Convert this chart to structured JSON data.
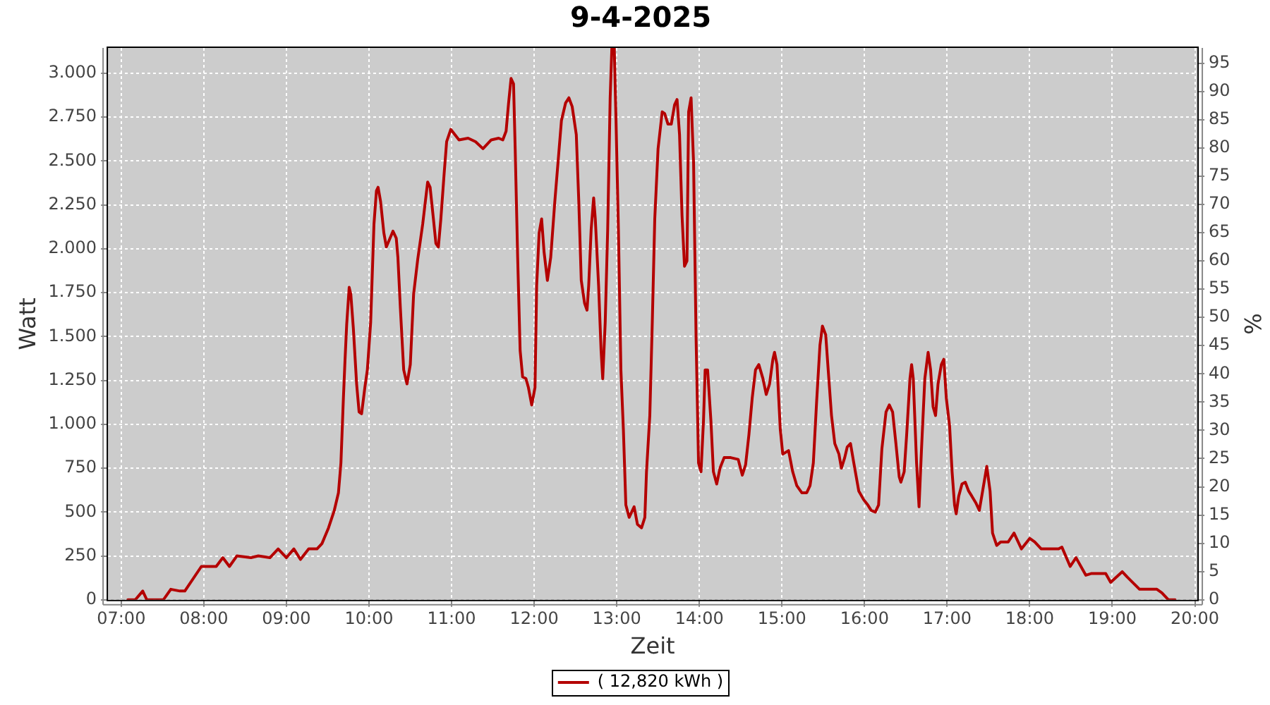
{
  "chart_data": {
    "type": "line",
    "title": "9-4-2025",
    "xlabel": "Zeit",
    "ylabel": "Watt",
    "y2label": "%",
    "x": [
      7.08,
      7.17,
      7.26,
      7.31,
      7.51,
      7.6,
      7.71,
      7.77,
      7.97,
      8.07,
      8.15,
      8.23,
      8.31,
      8.4,
      8.57,
      8.66,
      8.8,
      8.9,
      9.0,
      9.09,
      9.17,
      9.27,
      9.37,
      9.43,
      9.51,
      9.58,
      9.63,
      9.66,
      9.69,
      9.71,
      9.73,
      9.76,
      9.78,
      9.81,
      9.85,
      9.88,
      9.91,
      9.95,
      9.98,
      10.02,
      10.06,
      10.09,
      10.11,
      10.14,
      10.18,
      10.21,
      10.29,
      10.33,
      10.35,
      10.38,
      10.42,
      10.46,
      10.5,
      10.54,
      10.59,
      10.65,
      10.71,
      10.74,
      10.78,
      10.81,
      10.84,
      10.87,
      10.91,
      10.94,
      10.99,
      11.09,
      11.2,
      11.29,
      11.38,
      11.48,
      11.57,
      11.62,
      11.66,
      11.69,
      11.72,
      11.75,
      11.77,
      11.8,
      11.83,
      11.86,
      11.9,
      11.93,
      11.97,
      12.01,
      12.03,
      12.06,
      12.09,
      12.12,
      12.16,
      12.2,
      12.25,
      12.29,
      12.33,
      12.38,
      12.42,
      12.46,
      12.51,
      12.54,
      12.57,
      12.61,
      12.64,
      12.66,
      12.69,
      12.72,
      12.74,
      12.78,
      12.81,
      12.83,
      12.86,
      12.89,
      12.92,
      12.94,
      12.97,
      12.99,
      13.02,
      13.05,
      13.08,
      13.11,
      13.15,
      13.21,
      13.25,
      13.3,
      13.34,
      13.36,
      13.4,
      13.43,
      13.46,
      13.5,
      13.55,
      13.58,
      13.62,
      13.66,
      13.7,
      13.73,
      13.76,
      13.79,
      13.82,
      13.85,
      13.87,
      13.9,
      13.93,
      13.96,
      13.99,
      14.02,
      14.05,
      14.07,
      14.1,
      14.14,
      14.17,
      14.21,
      14.25,
      14.3,
      14.38,
      14.47,
      14.52,
      14.56,
      14.6,
      14.64,
      14.68,
      14.72,
      14.77,
      14.81,
      14.85,
      14.89,
      14.91,
      14.94,
      14.98,
      15.01,
      15.08,
      15.13,
      15.18,
      15.24,
      15.3,
      15.34,
      15.38,
      15.42,
      15.46,
      15.49,
      15.53,
      15.56,
      15.6,
      15.64,
      15.69,
      15.72,
      15.76,
      15.79,
      15.83,
      15.87,
      15.93,
      15.99,
      16.04,
      16.08,
      16.13,
      16.17,
      16.21,
      16.26,
      16.3,
      16.34,
      16.38,
      16.42,
      16.44,
      16.48,
      16.51,
      16.55,
      16.57,
      16.59,
      16.63,
      16.66,
      16.69,
      16.73,
      16.77,
      16.8,
      16.83,
      16.86,
      16.89,
      16.93,
      16.96,
      16.99,
      17.03,
      17.06,
      17.09,
      17.11,
      17.14,
      17.18,
      17.22,
      17.26,
      17.3,
      17.35,
      17.39,
      17.43,
      17.48,
      17.52,
      17.55,
      17.6,
      17.65,
      17.74,
      17.81,
      17.9,
      18.0,
      18.06,
      18.14,
      18.35,
      18.39,
      18.49,
      18.56,
      18.68,
      18.75,
      18.92,
      18.98,
      19.12,
      19.18,
      19.33,
      19.54,
      19.6,
      19.68,
      19.76
    ],
    "series": [
      {
        "name": "( 12,820 kWh )",
        "color": "#b40000",
        "values": [
          0,
          0,
          50,
          0,
          0,
          60,
          50,
          50,
          190,
          190,
          190,
          240,
          190,
          250,
          240,
          250,
          240,
          290,
          240,
          290,
          230,
          290,
          290,
          320,
          410,
          510,
          610,
          780,
          1150,
          1370,
          1570,
          1780,
          1740,
          1550,
          1230,
          1070,
          1060,
          1210,
          1310,
          1580,
          2140,
          2330,
          2350,
          2270,
          2090,
          2010,
          2100,
          2060,
          1950,
          1660,
          1310,
          1230,
          1340,
          1740,
          1940,
          2140,
          2380,
          2350,
          2170,
          2030,
          2010,
          2170,
          2430,
          2610,
          2680,
          2620,
          2630,
          2610,
          2570,
          2620,
          2630,
          2620,
          2670,
          2830,
          2970,
          2940,
          2570,
          1950,
          1420,
          1270,
          1260,
          1210,
          1110,
          1210,
          1790,
          2090,
          2170,
          1980,
          1820,
          1950,
          2270,
          2500,
          2730,
          2830,
          2860,
          2810,
          2650,
          2270,
          1820,
          1690,
          1650,
          1790,
          2110,
          2290,
          2170,
          1790,
          1420,
          1260,
          1580,
          2110,
          2860,
          3140,
          3140,
          2750,
          2110,
          1310,
          970,
          540,
          470,
          530,
          430,
          410,
          470,
          730,
          1050,
          1580,
          2170,
          2570,
          2780,
          2770,
          2710,
          2710,
          2820,
          2850,
          2650,
          2190,
          1900,
          1930,
          2780,
          2860,
          2490,
          1500,
          780,
          730,
          1020,
          1310,
          1310,
          1020,
          730,
          660,
          750,
          810,
          810,
          800,
          710,
          770,
          940,
          1150,
          1310,
          1340,
          1260,
          1170,
          1230,
          1370,
          1410,
          1340,
          970,
          830,
          850,
          730,
          650,
          610,
          610,
          650,
          780,
          1130,
          1450,
          1560,
          1510,
          1310,
          1050,
          890,
          830,
          750,
          810,
          870,
          890,
          780,
          620,
          570,
          540,
          510,
          500,
          540,
          860,
          1070,
          1110,
          1070,
          890,
          700,
          670,
          730,
          940,
          1260,
          1340,
          1260,
          780,
          530,
          860,
          1260,
          1410,
          1310,
          1100,
          1050,
          1230,
          1340,
          1370,
          1150,
          990,
          730,
          540,
          490,
          590,
          660,
          670,
          620,
          590,
          550,
          510,
          620,
          760,
          620,
          380,
          310,
          330,
          330,
          380,
          290,
          350,
          330,
          290,
          290,
          300,
          190,
          240,
          140,
          150,
          150,
          100,
          160,
          130,
          60,
          60,
          40,
          0,
          0
        ]
      }
    ],
    "xlim": [
      6.84,
      20.03
    ],
    "xticks": [
      {
        "value": 7,
        "label": "07:00"
      },
      {
        "value": 8,
        "label": "08:00"
      },
      {
        "value": 9,
        "label": "09:00"
      },
      {
        "value": 10,
        "label": "10:00"
      },
      {
        "value": 11,
        "label": "11:00"
      },
      {
        "value": 12,
        "label": "12:00"
      },
      {
        "value": 13,
        "label": "13:00"
      },
      {
        "value": 14,
        "label": "14:00"
      },
      {
        "value": 15,
        "label": "15:00"
      },
      {
        "value": 16,
        "label": "16:00"
      },
      {
        "value": 17,
        "label": "17:00"
      },
      {
        "value": 18,
        "label": "18:00"
      },
      {
        "value": 19,
        "label": "19:00"
      },
      {
        "value": 20,
        "label": "20:00"
      }
    ],
    "ylim": [
      0,
      3144
    ],
    "yticks": [
      0,
      250,
      500,
      750,
      {
        "value": 1000,
        "label": "1.000"
      },
      {
        "value": 1250,
        "label": "1.250"
      },
      {
        "value": 1500,
        "label": "1.500"
      },
      {
        "value": 1750,
        "label": "1.750"
      },
      {
        "value": 2000,
        "label": "2.000"
      },
      {
        "value": 2250,
        "label": "2.250"
      },
      {
        "value": 2500,
        "label": "2.500"
      },
      {
        "value": 2750,
        "label": "2.750"
      },
      {
        "value": 3000,
        "label": "3.000"
      }
    ],
    "y2lim": [
      0,
      97.7
    ],
    "y2ticks": [
      0,
      5,
      10,
      15,
      20,
      25,
      30,
      35,
      40,
      45,
      50,
      55,
      60,
      65,
      70,
      75,
      80,
      85,
      90,
      95
    ],
    "grid": true,
    "legend": "bottom",
    "marker": "none",
    "line_style": "solid"
  }
}
